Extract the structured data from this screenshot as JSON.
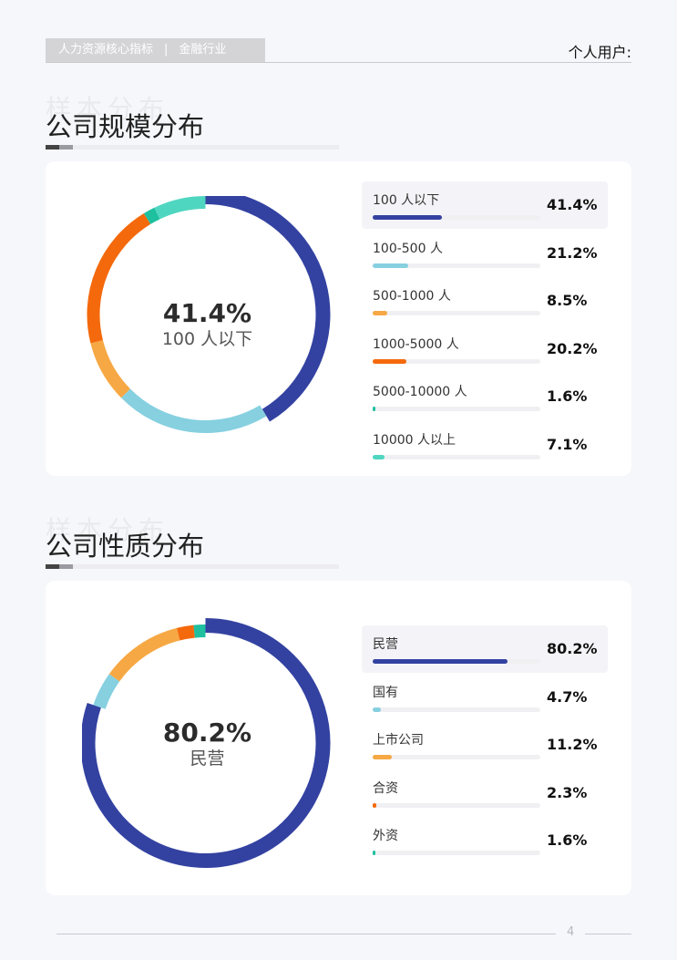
{
  "header": {
    "breadcrumb_main": "人力资源核心指标",
    "breadcrumb_sep": "|",
    "breadcrumb_sub": "金融行业",
    "user_label": "个人用户:"
  },
  "sections": [
    {
      "title": "公司规模分布",
      "watermark": "样本分布",
      "center_value": "41.4%",
      "center_label": "100 人以下",
      "legend": [
        {
          "label": "100 人以下",
          "pct": "41.4%"
        },
        {
          "label": "100-500 人",
          "pct": "21.2%"
        },
        {
          "label": "500-1000 人",
          "pct": "8.5%"
        },
        {
          "label": "1000-5000 人",
          "pct": "20.2%"
        },
        {
          "label": "5000-10000 人",
          "pct": "1.6%"
        },
        {
          "label": "10000 人以上",
          "pct": "7.1%"
        }
      ]
    },
    {
      "title": "公司性质分布",
      "watermark": "样本分布",
      "center_value": "80.2%",
      "center_label": "民营",
      "legend": [
        {
          "label": "民营",
          "pct": "80.2%"
        },
        {
          "label": "国有",
          "pct": "4.7%"
        },
        {
          "label": "上市公司",
          "pct": "11.2%"
        },
        {
          "label": "合资",
          "pct": "2.3%"
        },
        {
          "label": "外资",
          "pct": "1.6%"
        }
      ]
    }
  ],
  "chart_data": [
    {
      "type": "pie",
      "title": "公司规模分布",
      "categories": [
        "100 人以下",
        "100-500 人",
        "500-1000 人",
        "1000-5000 人",
        "5000-10000 人",
        "10000 人以上"
      ],
      "values": [
        41.4,
        21.2,
        8.5,
        20.2,
        1.6,
        7.1
      ],
      "colors": [
        "#3342a1",
        "#86d0e0",
        "#f6a844",
        "#f4690c",
        "#1ec0a0",
        "#4fd6c0"
      ],
      "highlighted": 0
    },
    {
      "type": "pie",
      "title": "公司性质分布",
      "categories": [
        "民营",
        "国有",
        "上市公司",
        "合资",
        "外资"
      ],
      "values": [
        80.2,
        4.7,
        11.2,
        2.3,
        1.6
      ],
      "colors": [
        "#3342a1",
        "#86d0e0",
        "#f6a844",
        "#f4690c",
        "#1ec0a0"
      ],
      "highlighted": 0
    }
  ],
  "footer": {
    "page_number": "4"
  }
}
